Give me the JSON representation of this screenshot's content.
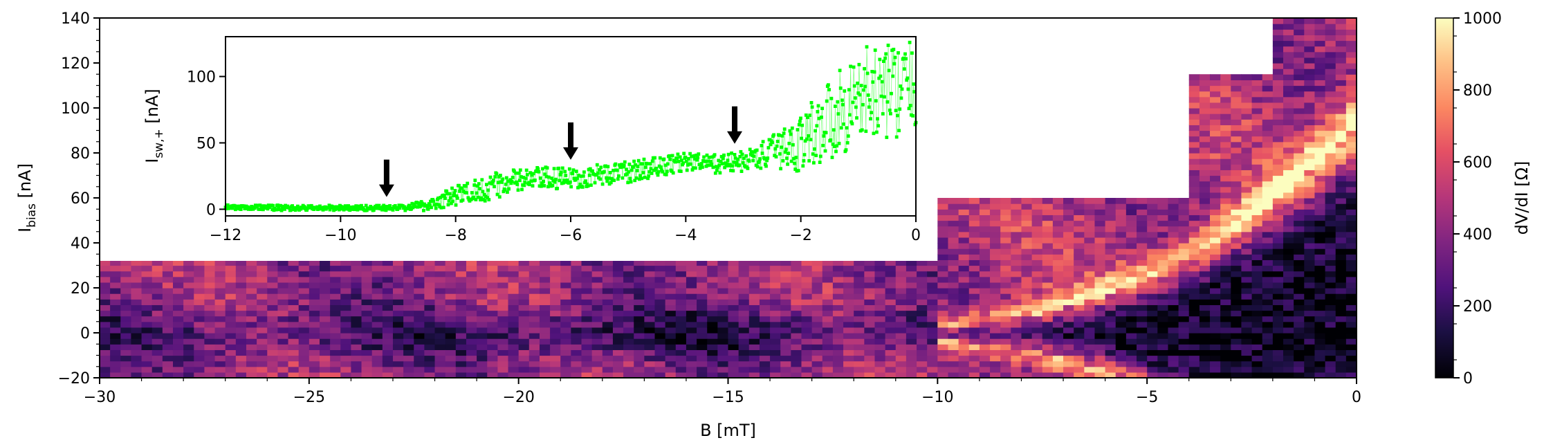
{
  "chart_data": [
    {
      "type": "heatmap",
      "xlabel": "B [mT]",
      "ylabel": "I",
      "ylabel_sub": "bias",
      "ylabel_unit": " [nA]",
      "xlim": [
        -30,
        0
      ],
      "ylim": [
        -20,
        140
      ],
      "xticks": [
        -30,
        -25,
        -20,
        -15,
        -10,
        -5,
        0
      ],
      "xtick_labels": [
        "−30",
        "−25",
        "−20",
        "−15",
        "−10",
        "−5",
        "0"
      ],
      "yticks": [
        -20,
        0,
        20,
        40,
        60,
        80,
        100,
        120,
        140
      ],
      "ytick_labels": [
        "−20",
        "0",
        "20",
        "40",
        "60",
        "80",
        "100",
        "120",
        "140"
      ],
      "colormap": "magma",
      "sweep_segments": [
        {
          "b_range": [
            -30,
            -10
          ],
          "i_range": [
            -20,
            32
          ]
        },
        {
          "b_range": [
            -10,
            -4
          ],
          "i_range": [
            -20,
            60
          ]
        },
        {
          "b_range": [
            -4,
            -2
          ],
          "i_range": [
            -20,
            115
          ]
        },
        {
          "b_range": [
            -2,
            0
          ],
          "i_range": [
            -20,
            140
          ]
        }
      ],
      "colorbar": {
        "label": "dV/dI [Ω]",
        "range": [
          0,
          1000
        ],
        "ticks": [
          0,
          200,
          400,
          600,
          800,
          1000
        ],
        "tick_labels": [
          "0",
          "200",
          "400",
          "600",
          "800",
          "1000"
        ]
      }
    },
    {
      "type": "scatter",
      "xlabel": "",
      "ylabel": "I",
      "ylabel_sub": "sw,+",
      "ylabel_unit": " [nA]",
      "xlim": [
        -12,
        0
      ],
      "ylim": [
        -5,
        130
      ],
      "xticks": [
        -12,
        -10,
        -8,
        -6,
        -4,
        -2,
        0
      ],
      "xtick_labels": [
        "−12",
        "−10",
        "−8",
        "−6",
        "−4",
        "−2",
        "0"
      ],
      "yticks": [
        0,
        50,
        100
      ],
      "ytick_labels": [
        "0",
        "50",
        "100"
      ],
      "color": "#00ff00",
      "series": [
        {
          "x": [
            -12,
            -11,
            -10,
            -9,
            -8.5,
            -8,
            -7.5,
            -7,
            -6.5,
            -6,
            -5.5,
            -5,
            -4.5,
            -4,
            -3.5,
            -3,
            -2.5,
            -2,
            -1.5,
            -1,
            -0.5,
            0
          ],
          "y": [
            2,
            1,
            1,
            1,
            3,
            10,
            16,
            21,
            23,
            23,
            26,
            28,
            32,
            36,
            34,
            36,
            43,
            50,
            68,
            85,
            90,
            90
          ],
          "spread": [
            2,
            2,
            2,
            2,
            4,
            8,
            10,
            9,
            9,
            8,
            8,
            8,
            8,
            7,
            7,
            8,
            12,
            22,
            32,
            36,
            36,
            36
          ]
        }
      ],
      "arrows_x": [
        -9.2,
        -6.0,
        -3.15
      ]
    }
  ]
}
